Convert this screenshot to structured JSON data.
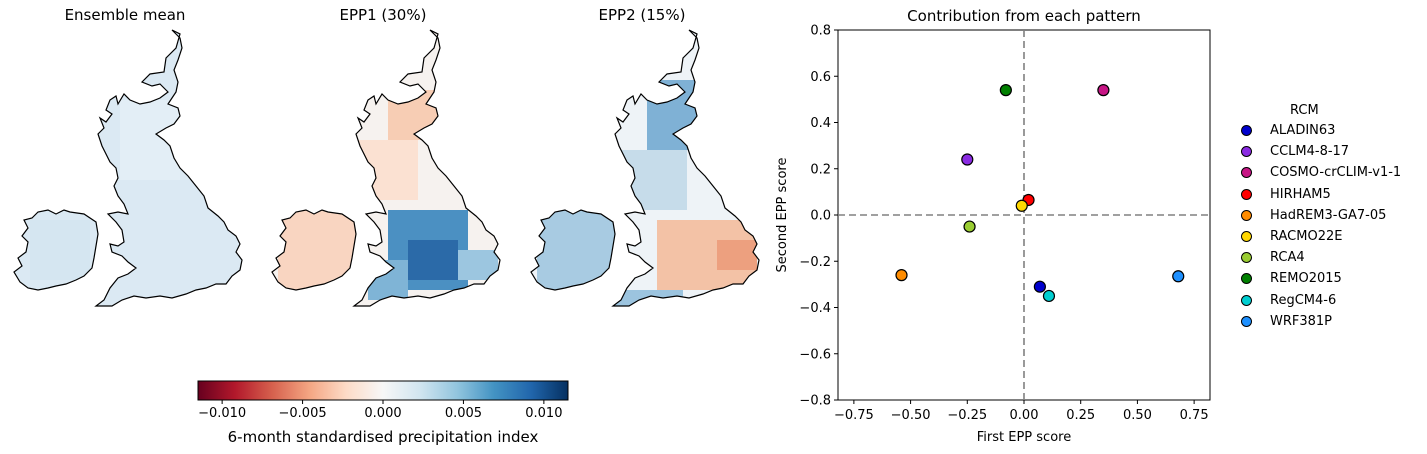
{
  "maps": {
    "titles": [
      "Ensemble mean",
      "EPP1 (30%)",
      "EPP2 (15%)"
    ]
  },
  "colorbar": {
    "label": "6-month standardised precipitation index",
    "ticks": [
      "−0.010",
      "−0.005",
      "0.000",
      "0.005",
      "0.010"
    ],
    "tick_values": [
      -0.01,
      -0.005,
      0.0,
      0.005,
      0.01
    ],
    "range": [
      -0.0115,
      0.0115
    ],
    "colors": [
      "#67001f",
      "#b2182b",
      "#d6604d",
      "#f4a582",
      "#fddbc7",
      "#f7f7f7",
      "#d1e5f0",
      "#92c5de",
      "#4393c3",
      "#2166ac",
      "#053061"
    ]
  },
  "chart_data": {
    "type": "scatter",
    "title": "Contribution from each pattern",
    "xlabel": "First EPP score",
    "ylabel": "Second EPP score",
    "xlim": [
      -0.82,
      0.82
    ],
    "ylim": [
      -0.8,
      0.8
    ],
    "xticks": [
      -0.75,
      -0.5,
      -0.25,
      0.0,
      0.25,
      0.5,
      0.75
    ],
    "xtick_labels": [
      "−0.75",
      "−0.50",
      "−0.25",
      "0.00",
      "0.25",
      "0.50",
      "0.75"
    ],
    "yticks": [
      -0.8,
      -0.6,
      -0.4,
      -0.2,
      0.0,
      0.2,
      0.4,
      0.6,
      0.8
    ],
    "ytick_labels": [
      "−0.8",
      "−0.6",
      "−0.4",
      "−0.2",
      "0.0",
      "0.2",
      "0.4",
      "0.6",
      "0.8"
    ],
    "reference_lines": {
      "x": 0.0,
      "y": 0.0,
      "style": "dashed",
      "color": "#808080"
    },
    "legend_title": "RCM",
    "legend_position": "right",
    "points": [
      {
        "name": "ALADIN63",
        "x": 0.07,
        "y": -0.31,
        "color": "#0000cd"
      },
      {
        "name": "CCLM4-8-17",
        "x": -0.25,
        "y": 0.24,
        "color": "#8a2be2"
      },
      {
        "name": "COSMO-crCLIM-v1-1",
        "x": 0.35,
        "y": 0.54,
        "color": "#c71585"
      },
      {
        "name": "HIRHAM5",
        "x": 0.02,
        "y": 0.065,
        "color": "#ff0000"
      },
      {
        "name": "HadREM3-GA7-05",
        "x": -0.54,
        "y": -0.26,
        "color": "#ff8c00"
      },
      {
        "name": "RACMO22E",
        "x": -0.01,
        "y": 0.04,
        "color": "#ffd700"
      },
      {
        "name": "RCA4",
        "x": -0.24,
        "y": -0.05,
        "color": "#9acd32"
      },
      {
        "name": "REMO2015",
        "x": -0.08,
        "y": 0.54,
        "color": "#008000"
      },
      {
        "name": "RegCM4-6",
        "x": 0.11,
        "y": -0.35,
        "color": "#00ced1"
      },
      {
        "name": "WRF381P",
        "x": 0.68,
        "y": -0.265,
        "color": "#1e90ff"
      }
    ]
  }
}
